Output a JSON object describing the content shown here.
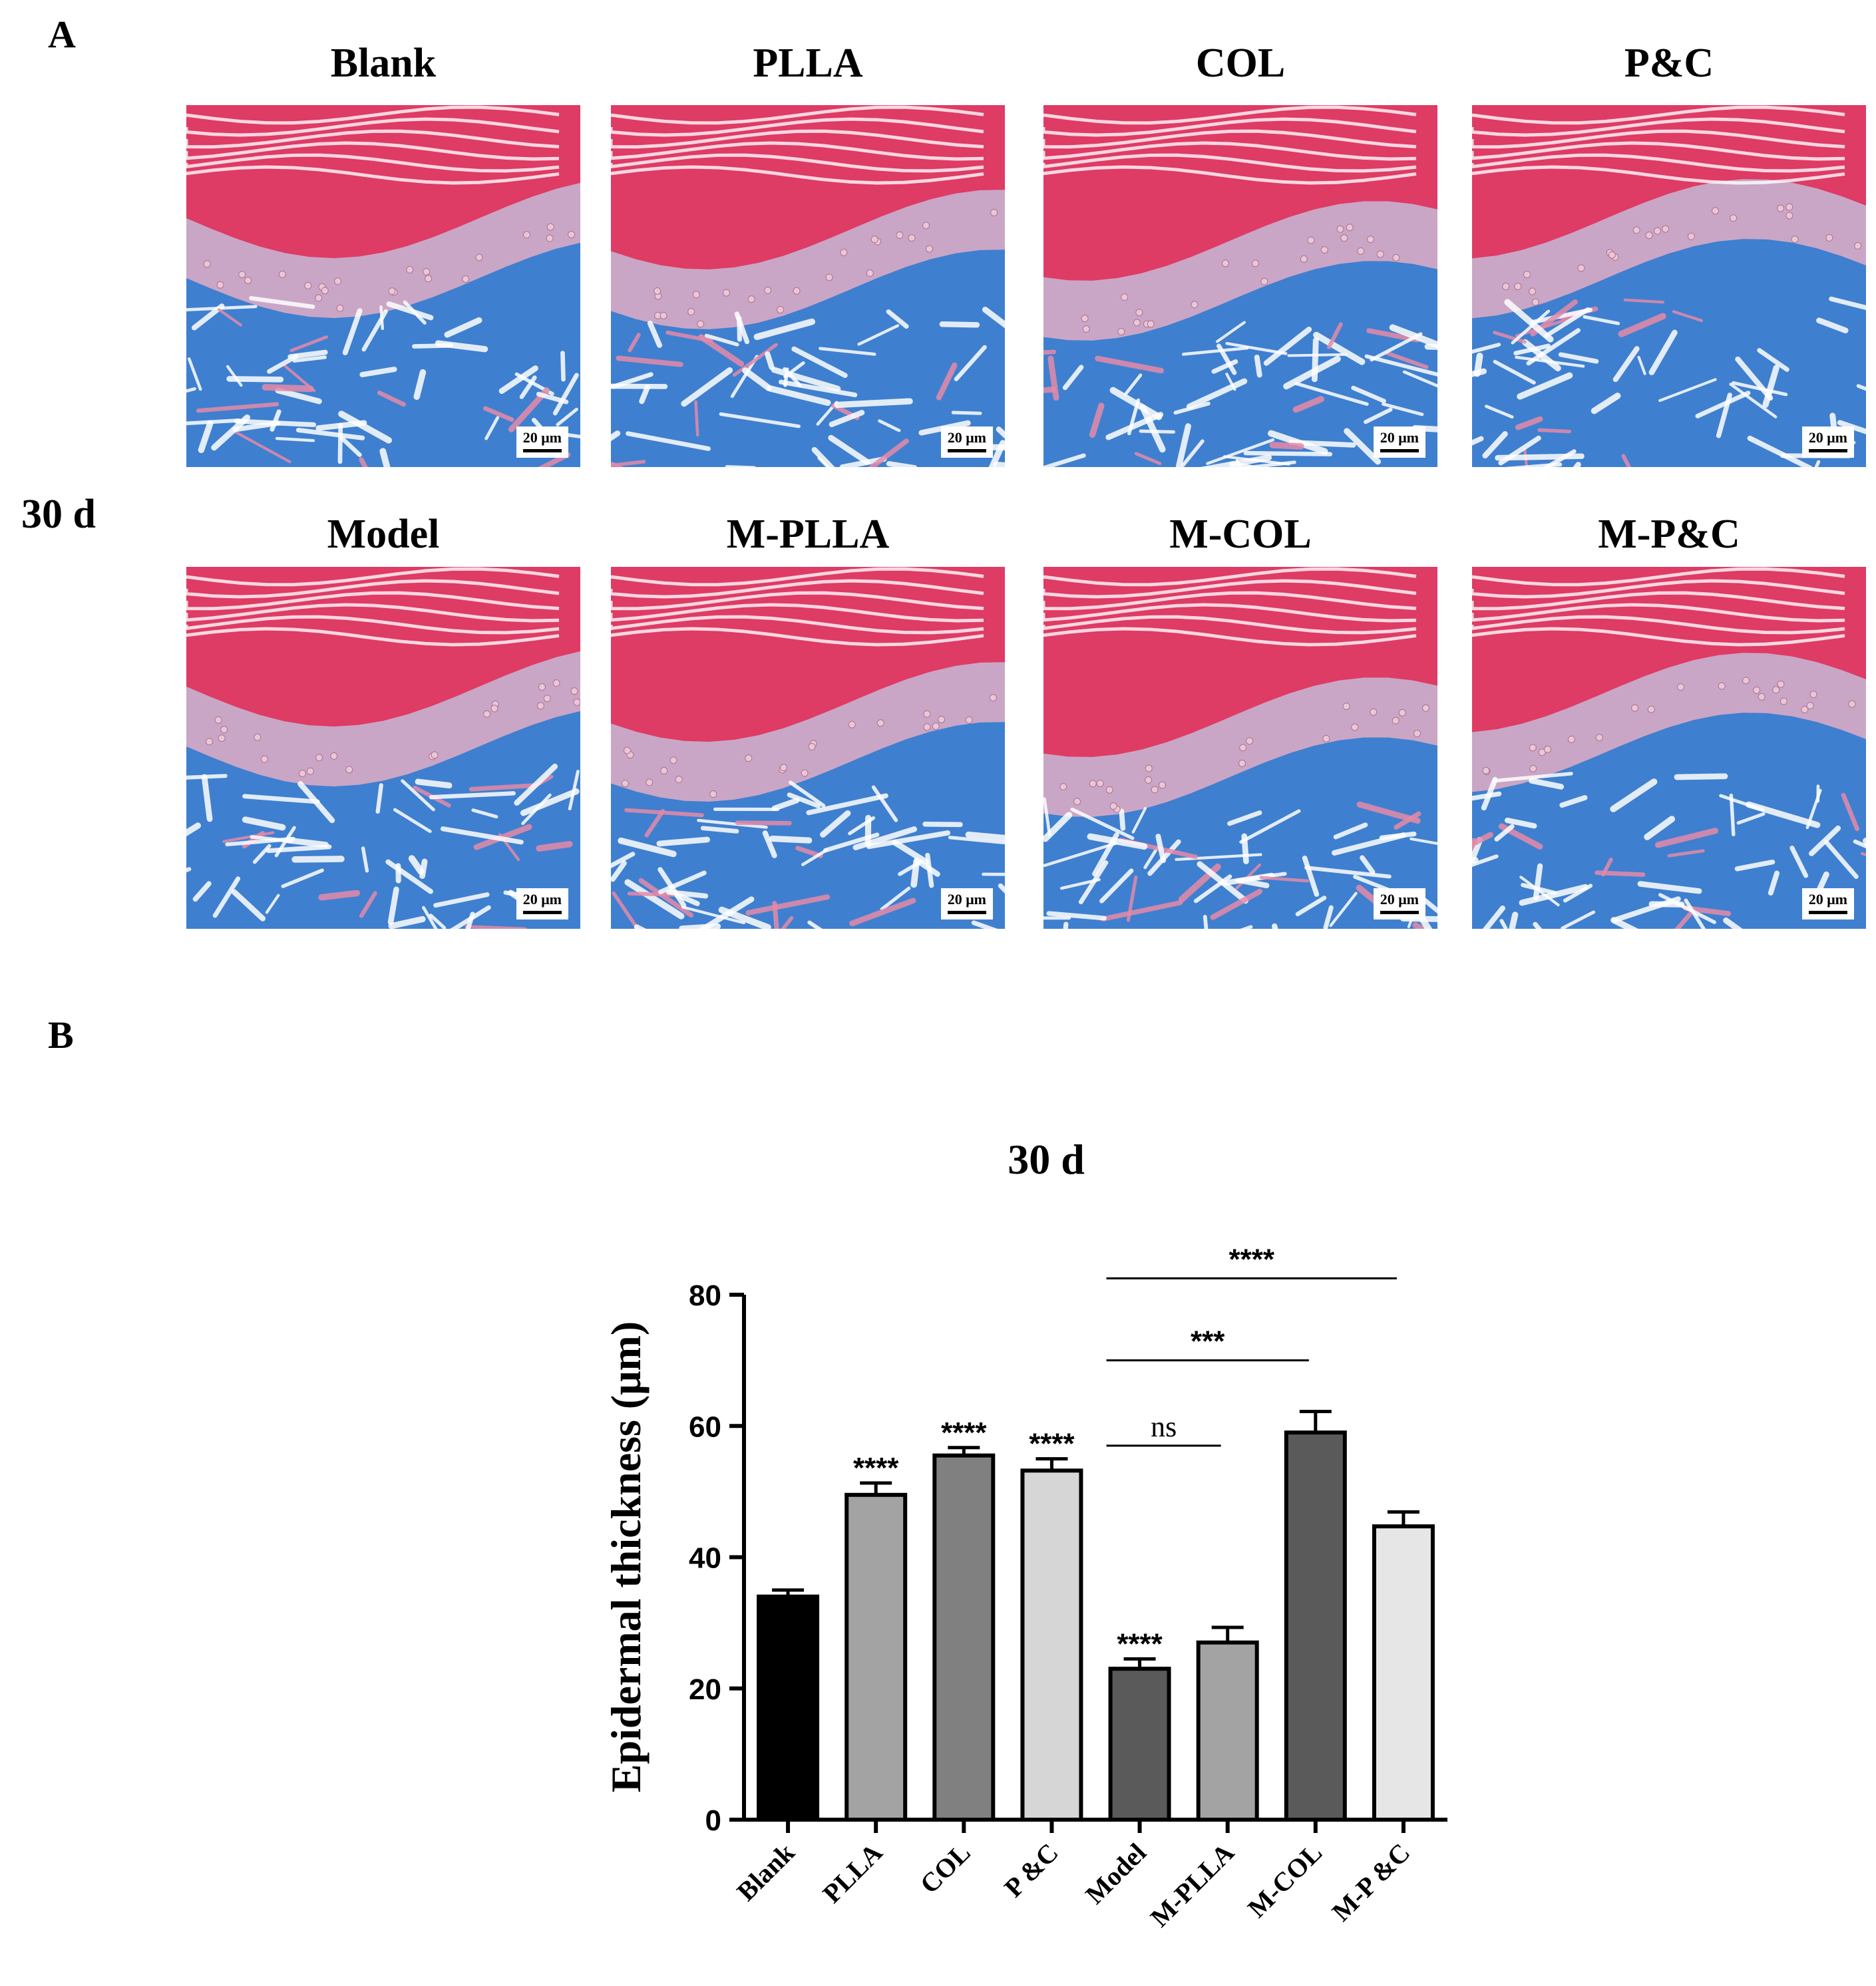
{
  "panel_a": {
    "letter": "A",
    "row_label": "30 d",
    "scale_label": "20 μm",
    "images": [
      {
        "title": "Blank",
        "variant": "top"
      },
      {
        "title": "PLLA",
        "variant": "top"
      },
      {
        "title": "COL",
        "variant": "top"
      },
      {
        "title": "P&C",
        "variant": "top"
      },
      {
        "title": "Model",
        "variant": "bottom"
      },
      {
        "title": "M-PLLA",
        "variant": "bottom"
      },
      {
        "title": "M-COL",
        "variant": "bottom"
      },
      {
        "title": "M-P&C",
        "variant": "bottom"
      }
    ],
    "stain_colors": {
      "stratum_corneum": "#e0305a",
      "epidermis": "#c9a6c6",
      "dermis": "#3f7fcf",
      "background": "#ffffff"
    }
  },
  "panel_b": {
    "letter": "B"
  },
  "chart_data": {
    "type": "bar",
    "title": "30 d",
    "ylabel": "Epidermal thickness  (μm)",
    "xlabel": "",
    "ylim": [
      0,
      80
    ],
    "yticks": [
      0,
      20,
      40,
      60,
      80
    ],
    "categories": [
      "Blank",
      "PLLA",
      "COL",
      "P &C",
      "Model",
      "M-PLLA",
      "M-COL",
      "M-P &C"
    ],
    "values": [
      34,
      49.5,
      55.5,
      53.2,
      23,
      27,
      59,
      44.7
    ],
    "errors": [
      1.0,
      1.8,
      1.2,
      1.8,
      1.5,
      2.3,
      3.2,
      2.2
    ],
    "bar_colors": [
      "#000000",
      "#a3a3a3",
      "#808080",
      "#d6d6d6",
      "#5a5a5a",
      "#a3a3a3",
      "#5a5a5a",
      "#e6e6e6"
    ],
    "bar_significance": [
      "",
      "****",
      "****",
      "****",
      "****",
      "",
      "",
      ""
    ],
    "comparisons": [
      {
        "from": 4,
        "to": 5,
        "label": "ns",
        "y": 57
      },
      {
        "from": 4,
        "to": 6,
        "label": "***",
        "y": 70
      },
      {
        "from": 4,
        "to": 7,
        "label": "****",
        "y": 82.5
      }
    ],
    "grid": false
  }
}
